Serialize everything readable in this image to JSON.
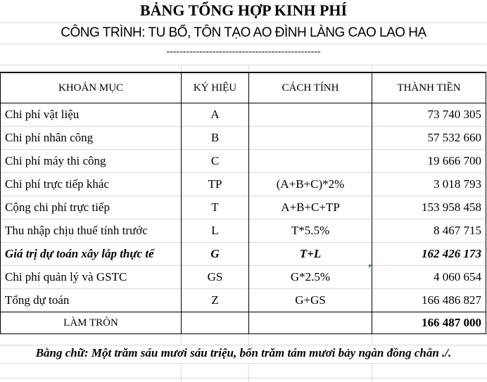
{
  "title": "BẢNG TỔNG HỢP KINH PHÍ",
  "subtitle": "CÔNG TRÌNH: TU BỔ, TÔN TẠO AO ĐÌNH LÀNG CAO LAO HẠ",
  "separator": "-----------------------------------------------",
  "headers": [
    "KHOẢN MỤC",
    "KÝ HIỆU",
    "CÁCH TÍNH",
    "THÀNH TIỀN"
  ],
  "rows": [
    {
      "item": "Chi phí vật liệu",
      "code": "A",
      "formula": "",
      "amount": "73 740 305"
    },
    {
      "item": "Chi phí nhân công",
      "code": "B",
      "formula": "",
      "amount": "57 532 660"
    },
    {
      "item": "Chi phí máy thi công",
      "code": "C",
      "formula": "",
      "amount": "19 666 700"
    },
    {
      "item": "Chi phí trực tiếp khác",
      "code": "TP",
      "formula": "(A+B+C)*2%",
      "amount": "3 018 793"
    },
    {
      "item": "Cộng chi phí trực tiếp",
      "code": "T",
      "formula": "A+B+C+TP",
      "amount": "153 958 458"
    },
    {
      "item": "Thu nhập chịu thuế tính trước",
      "code": "L",
      "formula": "T*5.5%",
      "amount": "8 467 715"
    },
    {
      "item": "Giá trị dự toán xây lắp thực tế",
      "code": "G",
      "formula": "T+L",
      "amount": "162 426 173"
    },
    {
      "item": "Chi phí quản lý và GSTC",
      "code": "GS",
      "formula": "G*2.5%",
      "amount": "4 060 654"
    },
    {
      "item": "Tổng dự toán",
      "code": "Z",
      "formula": "G+GS",
      "amount": "166 486 827"
    }
  ],
  "rounded": {
    "label": "LÀM TRÒN",
    "amount": "166 487 000"
  },
  "in_words": "Bằng chữ: Một trăm sáu mươi sáu triệu, bốn trăm tám mươi bảy ngàn đồng chẵn ./."
}
